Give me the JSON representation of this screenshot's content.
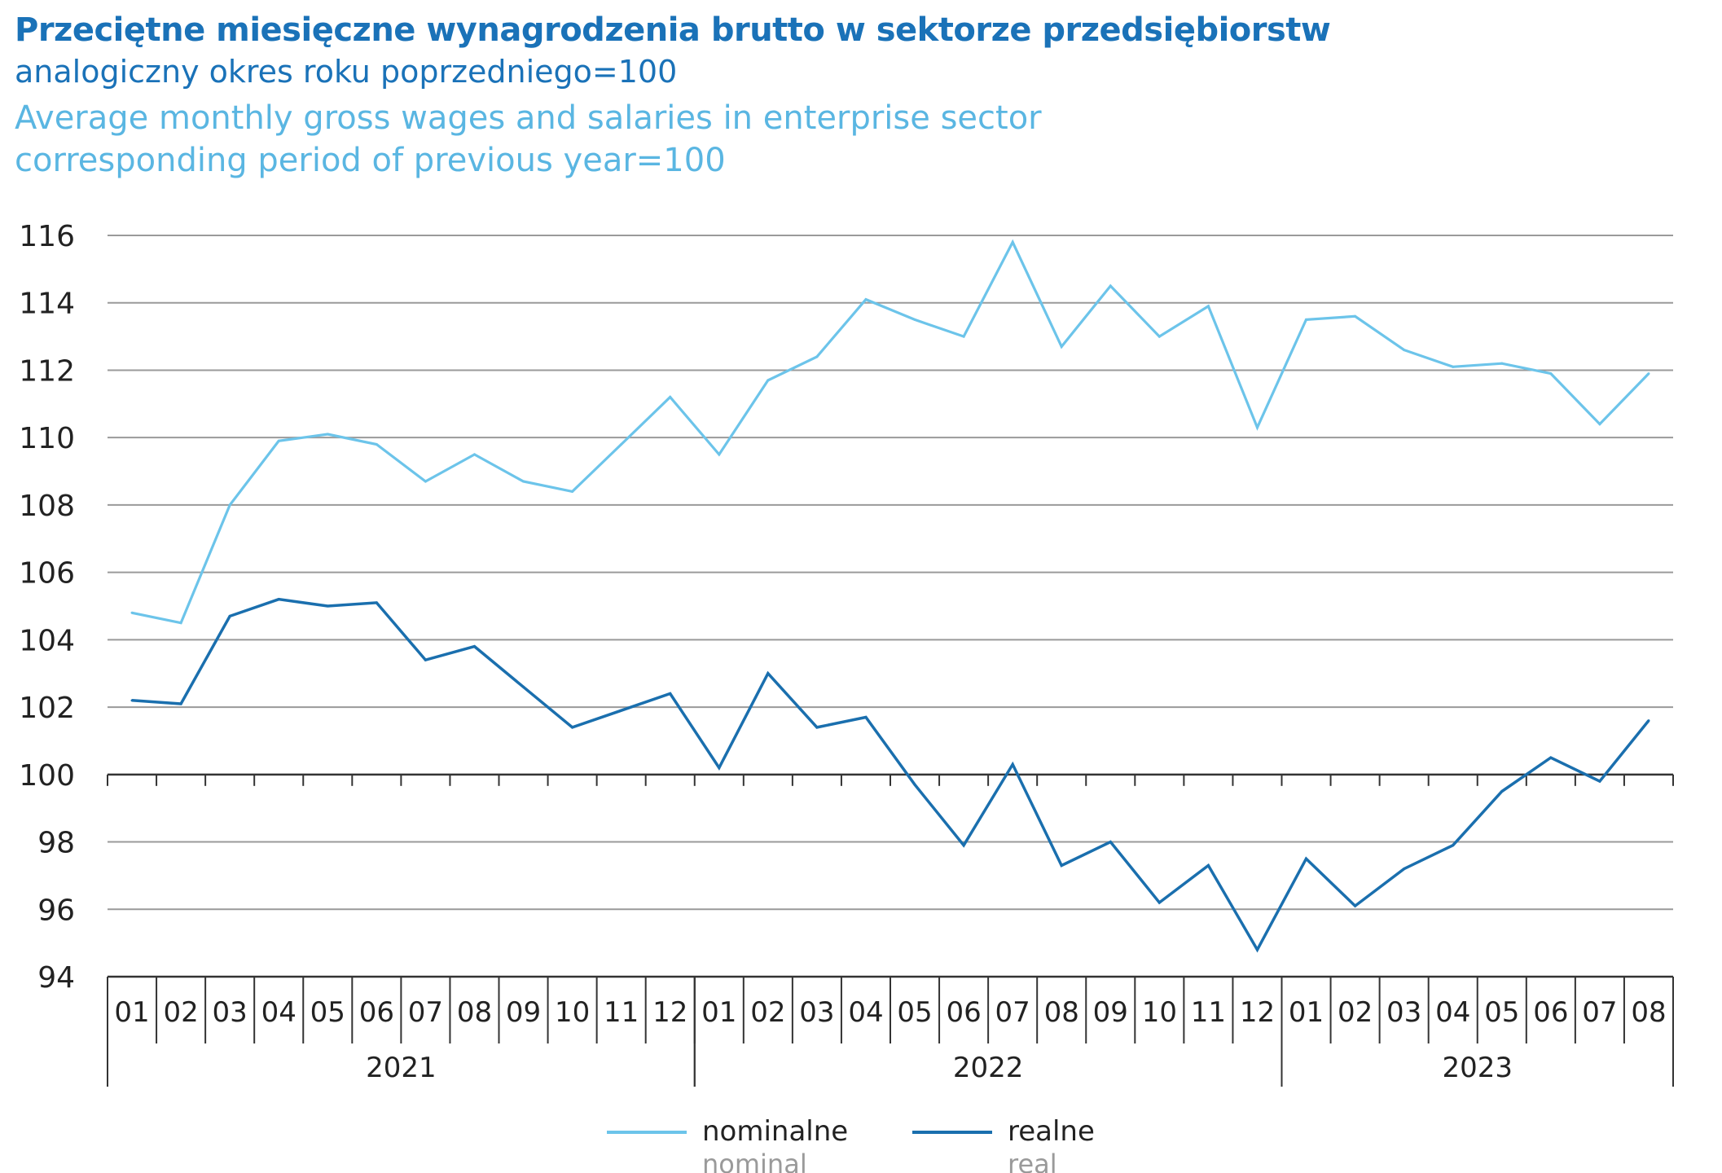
{
  "title_pl": "Przeciętne miesięczne wynagrodzenia brutto w sektorze przedsiębiorstw",
  "subtitle_pl": "analogiczny okres roku poprzedniego=100",
  "title_en": "Average monthly gross wages and salaries in enterprise sector",
  "subtitle_en": "corresponding period of previous year=100",
  "chart_data": {
    "type": "line",
    "title": "Przeciętne miesięczne wynagrodzenia brutto w sektorze przedsiębiorstw / Average monthly gross wages and salaries in enterprise sector",
    "ylim": [
      94,
      116
    ],
    "yticks": [
      94,
      96,
      98,
      100,
      102,
      104,
      106,
      108,
      110,
      112,
      114,
      116
    ],
    "grid": true,
    "legend_position": "bottom",
    "years": [
      {
        "label": "2021",
        "months": [
          "01",
          "02",
          "03",
          "04",
          "05",
          "06",
          "07",
          "08",
          "09",
          "10",
          "11",
          "12"
        ]
      },
      {
        "label": "2022",
        "months": [
          "01",
          "02",
          "03",
          "04",
          "05",
          "06",
          "07",
          "08",
          "09",
          "10",
          "11",
          "12"
        ]
      },
      {
        "label": "2023",
        "months": [
          "01",
          "02",
          "03",
          "04",
          "05",
          "06",
          "07",
          "08"
        ]
      }
    ],
    "series": [
      {
        "name": "nominalne",
        "name_en": "nominal",
        "color": "#6cc4ea",
        "values": [
          104.8,
          104.5,
          108.0,
          109.9,
          110.1,
          109.8,
          108.7,
          109.5,
          108.7,
          108.4,
          109.8,
          111.2,
          109.5,
          111.7,
          112.4,
          114.1,
          113.5,
          113.0,
          115.8,
          112.7,
          114.5,
          113.0,
          113.9,
          110.3,
          113.5,
          113.6,
          112.6,
          112.1,
          112.2,
          111.9,
          110.4,
          111.9
        ]
      },
      {
        "name": "realne",
        "name_en": "real",
        "color": "#1a6fae",
        "values": [
          102.2,
          102.1,
          104.7,
          105.2,
          105.0,
          105.1,
          103.4,
          103.8,
          102.6,
          101.4,
          101.9,
          102.4,
          100.2,
          103.0,
          101.4,
          101.7,
          99.7,
          97.9,
          100.3,
          97.3,
          98.0,
          96.2,
          97.3,
          94.8,
          97.5,
          96.1,
          97.2,
          97.9,
          99.5,
          100.5,
          99.8,
          101.6
        ]
      }
    ]
  }
}
